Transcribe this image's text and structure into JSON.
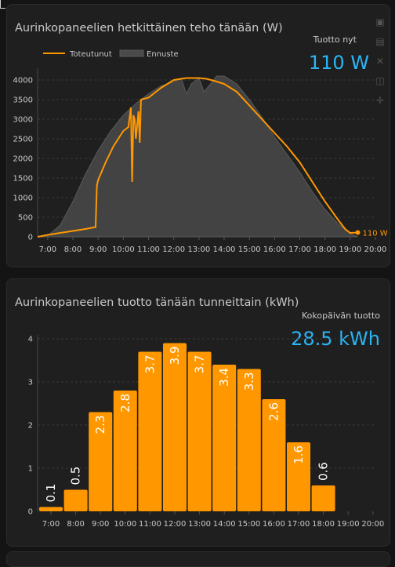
{
  "power_card": {
    "title": "Aurinkopaneelien hetkittäinen teho tänään (W)",
    "stat_label": "Tuotto nyt",
    "stat_value": "110 W",
    "legend": {
      "actual": "Toteutunut",
      "forecast": "Ennuste"
    },
    "last_label": "110 W",
    "toolbar_icons": [
      "camera-icon",
      "save-icon",
      "fullscreen-icon",
      "zoom-icon",
      "pan-icon"
    ]
  },
  "energy_card": {
    "title": "Aurinkopaneelien tuotto tänään tunneittain (kWh)",
    "stat_label": "Kokopäivän tuotto",
    "stat_value": "28.5 kWh"
  },
  "colors": {
    "actual_line": "#ff9800",
    "forecast_fill": "#4a4a4a",
    "bar": "#ff9800",
    "stat": "#29b6f6"
  },
  "chart_data": [
    {
      "type": "line",
      "title": "Aurinkopaneelien hetkittäinen teho tänään (W)",
      "x_ticks": [
        "7:00",
        "8:00",
        "9:00",
        "10:00",
        "11:00",
        "12:00",
        "13:00",
        "14:00",
        "15:00",
        "16:00",
        "17:00",
        "18:00",
        "19:00",
        "20:00"
      ],
      "xlim": [
        6.6,
        20.0
      ],
      "ylim": [
        0,
        4200
      ],
      "y_ticks": [
        0,
        500,
        1000,
        1500,
        2000,
        2500,
        3000,
        3500,
        4000
      ],
      "grid": true,
      "legend_position": "top-left",
      "series": [
        {
          "name": "Toteutunut",
          "x": [
            6.6,
            7.0,
            7.5,
            8.0,
            8.5,
            8.9,
            8.95,
            9.0,
            9.3,
            9.6,
            9.9,
            10.0,
            10.2,
            10.3,
            10.35,
            10.4,
            10.45,
            10.5,
            10.6,
            10.65,
            10.7,
            11.0,
            11.5,
            12.0,
            12.5,
            13.0,
            13.3,
            13.6,
            14.0,
            14.5,
            15.0,
            15.5,
            16.0,
            16.5,
            17.0,
            17.5,
            18.0,
            18.5,
            18.8,
            19.0,
            19.3
          ],
          "y": [
            0,
            50,
            100,
            150,
            200,
            250,
            1300,
            1450,
            1900,
            2300,
            2600,
            2700,
            2800,
            3300,
            1400,
            3100,
            3000,
            2500,
            3200,
            2400,
            3500,
            3550,
            3800,
            4000,
            4050,
            4050,
            4030,
            3980,
            3900,
            3700,
            3350,
            3000,
            2650,
            2300,
            1900,
            1400,
            900,
            450,
            200,
            100,
            110
          ]
        },
        {
          "name": "Ennuste",
          "x": [
            6.6,
            7.0,
            7.5,
            8.0,
            8.5,
            9.0,
            9.5,
            10.0,
            10.5,
            11.0,
            11.5,
            12.0,
            12.3,
            12.5,
            12.7,
            13.0,
            13.2,
            13.4,
            13.7,
            14.0,
            14.5,
            15.0,
            15.5,
            16.0,
            16.5,
            17.0,
            17.5,
            18.0,
            18.5,
            19.0,
            19.3
          ],
          "y": [
            0,
            30,
            300,
            900,
            1600,
            2200,
            2700,
            3100,
            3400,
            3650,
            3850,
            3950,
            4050,
            3650,
            3900,
            4050,
            3700,
            3850,
            4100,
            4100,
            3900,
            3500,
            3050,
            2550,
            2100,
            1650,
            1150,
            700,
            350,
            80,
            0
          ]
        }
      ]
    },
    {
      "type": "bar",
      "title": "Aurinkopaneelien tuotto tänään tunneittain (kWh)",
      "x_ticks": [
        "7:00",
        "8:00",
        "9:00",
        "10:00",
        "11:00",
        "12:00",
        "13:00",
        "14:00",
        "15:00",
        "16:00",
        "17:00",
        "18:00",
        "19:00",
        "20:00"
      ],
      "bar_hours": [
        7,
        8,
        9,
        10,
        11,
        12,
        13,
        14,
        15,
        16,
        17,
        18
      ],
      "values": [
        0.1,
        0.5,
        2.3,
        2.8,
        3.7,
        3.9,
        3.7,
        3.4,
        3.3,
        2.6,
        1.6,
        0.6
      ],
      "labels": [
        "0.1",
        "0.5",
        "2.3",
        "2.8",
        "3.7",
        "3.9",
        "3.7",
        "3.4",
        "3.3",
        "2.6",
        "1.6",
        "0.6"
      ],
      "ylim": [
        0,
        4
      ],
      "y_ticks": [
        0,
        1,
        2,
        3,
        4
      ],
      "grid": true
    }
  ]
}
